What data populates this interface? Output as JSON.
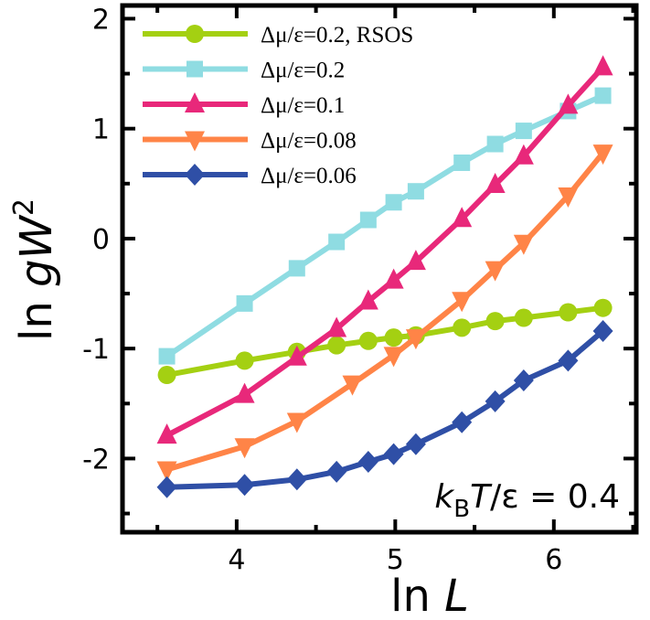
{
  "chart_data": {
    "type": "line",
    "xlabel_main": "ln ",
    "xlabel_italic": "L",
    "ylabel_main": "ln ",
    "ylabel_italic": "gW",
    "ylabel_sup": "2",
    "xlim": [
      3.28,
      6.52
    ],
    "ylim": [
      -2.67,
      2.12
    ],
    "x_ticks": [
      4,
      5,
      6
    ],
    "y_ticks": [
      2,
      1,
      0,
      -1,
      -2
    ],
    "grid": false,
    "legend_position": "top-left",
    "annotation": {
      "k": "k",
      "sub": "B",
      "T": "T",
      "rest": "/ε = 0.4"
    },
    "series": [
      {
        "name": "Δμ/ε=0.2, RSOS",
        "color": "#a4d012",
        "marker": "circle",
        "x": [
          3.56,
          4.05,
          4.38,
          4.63,
          4.83,
          4.99,
          5.13,
          5.42,
          5.63,
          5.81,
          6.09,
          6.31
        ],
        "y": [
          -1.24,
          -1.11,
          -1.03,
          -0.97,
          -0.93,
          -0.9,
          -0.88,
          -0.81,
          -0.75,
          -0.72,
          -0.67,
          -0.63
        ]
      },
      {
        "name": "Δμ/ε=0.2",
        "color": "#8fdce2",
        "marker": "square",
        "x": [
          3.56,
          4.05,
          4.38,
          4.63,
          4.83,
          4.99,
          5.13,
          5.42,
          5.63,
          5.81,
          6.09,
          6.31
        ],
        "y": [
          -1.07,
          -0.59,
          -0.27,
          -0.03,
          0.17,
          0.33,
          0.43,
          0.69,
          0.86,
          0.98,
          1.16,
          1.3
        ]
      },
      {
        "name": "Δμ/ε=0.1",
        "color": "#e8287a",
        "marker": "triangle-up",
        "x": [
          3.56,
          4.05,
          4.38,
          4.63,
          4.83,
          4.99,
          5.13,
          5.42,
          5.63,
          5.81,
          6.09,
          6.31
        ],
        "y": [
          -1.79,
          -1.42,
          -1.08,
          -0.82,
          -0.57,
          -0.38,
          -0.21,
          0.18,
          0.49,
          0.75,
          1.21,
          1.56
        ]
      },
      {
        "name": "Δμ/ε=0.08",
        "color": "#ff8447",
        "marker": "triangle-down",
        "x": [
          3.56,
          4.05,
          4.38,
          4.73,
          4.99,
          5.13,
          5.42,
          5.63,
          5.81,
          6.09,
          6.31
        ],
        "y": [
          -2.1,
          -1.89,
          -1.66,
          -1.32,
          -1.06,
          -0.9,
          -0.56,
          -0.28,
          -0.04,
          0.39,
          0.78
        ]
      },
      {
        "name": "Δμ/ε=0.06",
        "color": "#2f4fa6",
        "marker": "diamond",
        "x": [
          3.56,
          4.05,
          4.38,
          4.63,
          4.83,
          4.99,
          5.13,
          5.42,
          5.63,
          5.81,
          6.09,
          6.31
        ],
        "y": [
          -2.26,
          -2.24,
          -2.19,
          -2.12,
          -2.03,
          -1.96,
          -1.87,
          -1.67,
          -1.48,
          -1.29,
          -1.11,
          -0.84
        ]
      }
    ]
  }
}
